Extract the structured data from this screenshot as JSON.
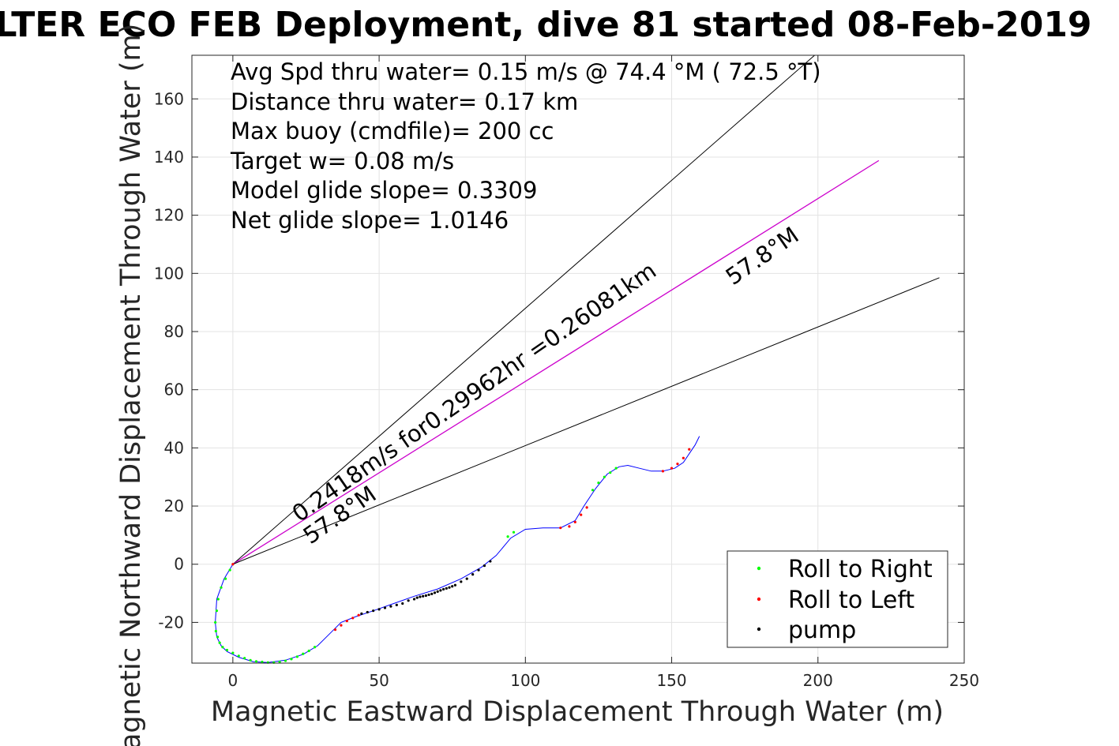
{
  "chart_data": {
    "type": "scatter",
    "title": "LTER ECO FEB Deployment, dive 81 started 08-Feb-2019",
    "xlabel": "Magnetic Eastward Displacement Through Water (m)",
    "ylabel": "Magnetic Northward Displacement Through Water (m)",
    "xlim": [
      -14,
      250
    ],
    "ylim": [
      -34,
      175
    ],
    "xticks": [
      0,
      50,
      100,
      150,
      200,
      250
    ],
    "yticks": [
      -20,
      0,
      20,
      40,
      60,
      80,
      100,
      120,
      140,
      160
    ],
    "grid": true,
    "legend_position": "bottom-right",
    "annotations": [
      "Avg Spd thru water=  0.15 m/s @  74.4 °M ( 72.5 °T)",
      "Distance thru water=  0.17 km",
      "Max buoy (cmdfile)= 200 cc",
      "Target w= 0.08 m/s",
      "Model glide slope= 0.3309",
      "Net glide slope= 1.0146"
    ],
    "line_labels": {
      "current": "0.2418m/s for0.29962hr =0.26081km",
      "upper_heading": "57.8°M",
      "lower_heading": "57.8°M"
    },
    "reference_lines": [
      {
        "name": "upper-bound",
        "color": "#000000",
        "x": [
          0,
          200
        ],
        "y": [
          0,
          176
        ]
      },
      {
        "name": "depth-avg-current",
        "color": "#cc00cc",
        "x": [
          0,
          220.8
        ],
        "y": [
          0,
          138.8
        ]
      },
      {
        "name": "lower-bound",
        "color": "#000000",
        "x": [
          0,
          241.5
        ],
        "y": [
          0,
          98.5
        ]
      }
    ],
    "series": [
      {
        "name": "track",
        "color": "#0000ff",
        "x": [
          0,
          -3,
          -5.5,
          -6,
          -5.5,
          -4,
          -2,
          2,
          7,
          12,
          18,
          24,
          29,
          33,
          37,
          42,
          48,
          55,
          62,
          70,
          78,
          85,
          90,
          95,
          100,
          106,
          112,
          117,
          120,
          124,
          128,
          132,
          135,
          139,
          143,
          147,
          151,
          154,
          156,
          158,
          159.5
        ],
        "y": [
          0,
          -5,
          -12,
          -20,
          -25,
          -28,
          -30,
          -32,
          -33.5,
          -33.8,
          -33,
          -31,
          -28,
          -24,
          -20,
          -18,
          -16,
          -13.5,
          -11,
          -8.5,
          -5,
          -1,
          3,
          9,
          12,
          12.5,
          12.5,
          15,
          20,
          26,
          31,
          33.5,
          34,
          33,
          32,
          32,
          33,
          35,
          38,
          41,
          44
        ]
      },
      {
        "name": "Roll to Right",
        "color": "#00ff00",
        "x": [
          -1,
          -2.5,
          -4,
          -5,
          -5.5,
          -6,
          -5.8,
          -5.2,
          -4.5,
          -3.5,
          -2,
          0,
          2,
          4,
          6,
          8,
          10,
          12,
          14,
          16,
          18,
          20,
          22,
          24,
          26,
          28,
          94,
          96,
          123,
          125,
          127,
          129,
          131
        ],
        "y": [
          -2,
          -5,
          -8,
          -12,
          -16,
          -20,
          -23,
          -25,
          -27,
          -28.5,
          -29.5,
          -30.5,
          -31.5,
          -32.3,
          -33,
          -33.4,
          -33.6,
          -33.8,
          -33.8,
          -33.6,
          -33.2,
          -32.6,
          -31.8,
          -30.8,
          -29.8,
          -28.5,
          9.5,
          11,
          25.5,
          28,
          30,
          31.5,
          33
        ]
      },
      {
        "name": "Roll to Left",
        "color": "#ff0000",
        "x": [
          0,
          35,
          37,
          39,
          41,
          43,
          112,
          115,
          117,
          119,
          121,
          147,
          150,
          152,
          154,
          156
        ],
        "y": [
          0,
          -22.5,
          -21,
          -19.5,
          -18.5,
          -17.5,
          12.5,
          13,
          14.5,
          17,
          19.5,
          32,
          33,
          34.5,
          36.5,
          39.5
        ]
      },
      {
        "name": "pump",
        "color": "#000000",
        "x": [
          44,
          46,
          48,
          50,
          52,
          54,
          56,
          58,
          60,
          62,
          63,
          64,
          65,
          66,
          67,
          68,
          69,
          70,
          71,
          72,
          73,
          74,
          75,
          76,
          78,
          80,
          82,
          84,
          86,
          88
        ],
        "y": [
          -17,
          -16.5,
          -16,
          -15.5,
          -15,
          -14.5,
          -14,
          -13.5,
          -12.5,
          -12,
          -11.5,
          -11.2,
          -11,
          -10.8,
          -10.5,
          -10.2,
          -9.8,
          -9.4,
          -9,
          -8.6,
          -8.3,
          -8,
          -7.6,
          -7.2,
          -6,
          -5,
          -3.5,
          -2,
          -0.5,
          1
        ]
      }
    ]
  }
}
